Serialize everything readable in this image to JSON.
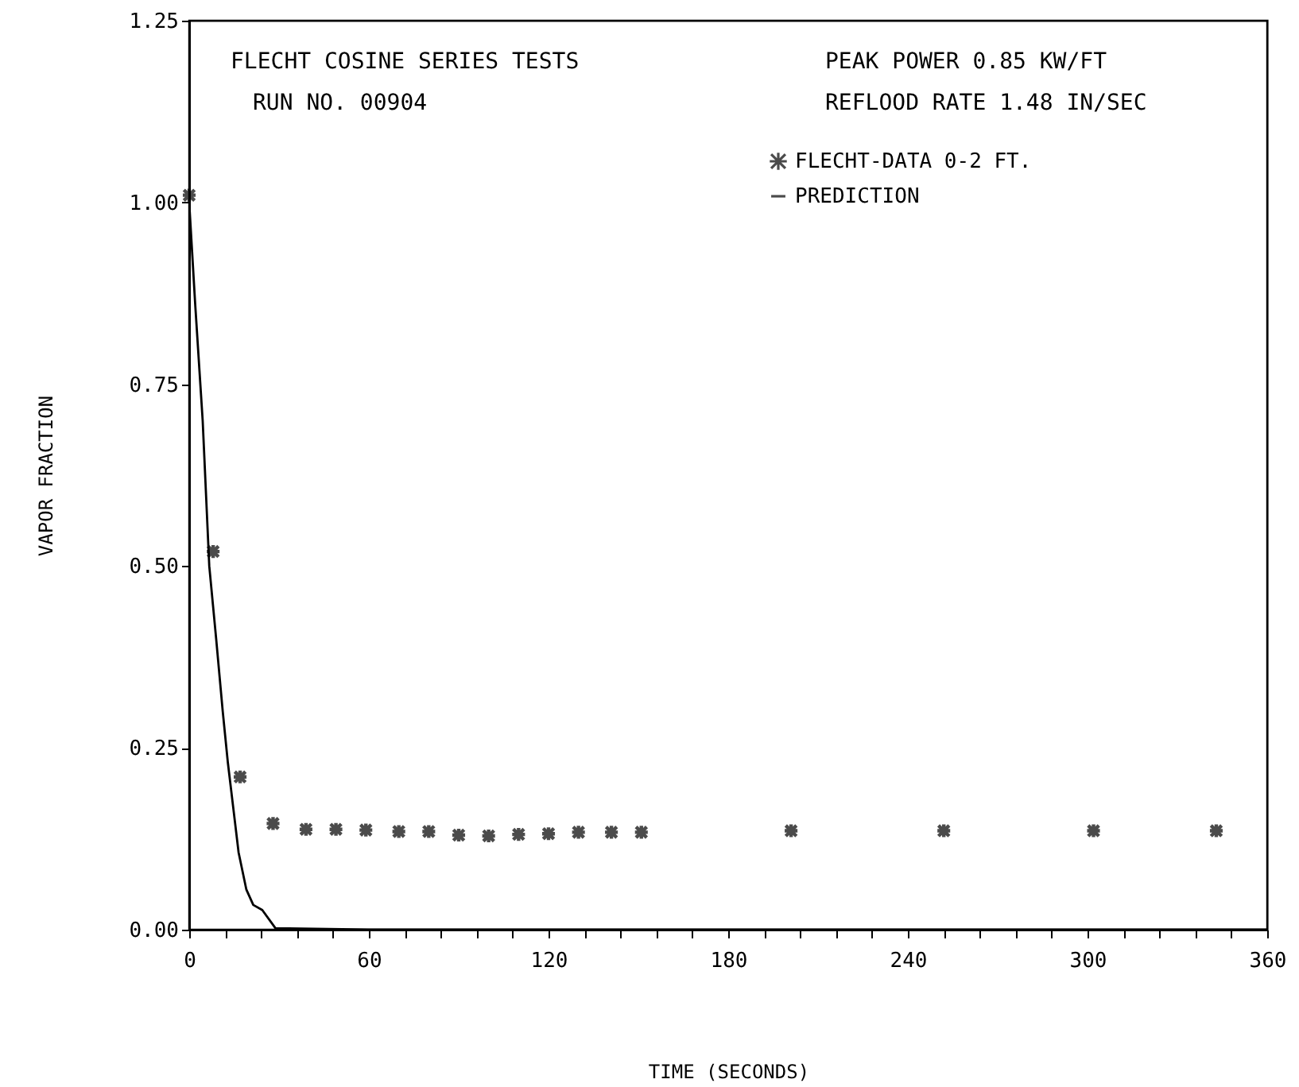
{
  "chart_data": {
    "type": "scatter",
    "title": "FLECHT COSINE SERIES TESTS",
    "subtitle": "RUN NO. 00904",
    "xlabel": "TIME (SECONDS)",
    "ylabel": "VAPOR FRACTION",
    "annotations": [
      "PEAK POWER 0.85 KW/FT",
      "REFLOOD RATE 1.48 IN/SEC"
    ],
    "series": [
      {
        "name": "FLECHT-DATA 0-2 FT.",
        "marker": "cross",
        "color": "#000000",
        "x": [
          0,
          8,
          17,
          28,
          39,
          49,
          59,
          70,
          80,
          90,
          100,
          110,
          120,
          130,
          141,
          151,
          201,
          252,
          302,
          343
        ],
        "values": [
          1.01,
          0.52,
          0.21,
          0.146,
          0.138,
          0.138,
          0.137,
          0.135,
          0.135,
          0.13,
          0.129,
          0.131,
          0.132,
          0.134,
          0.134,
          0.134,
          0.136,
          0.136,
          0.136,
          0.136
        ]
      },
      {
        "name": "PREDICTION",
        "type": "line",
        "marker": "none",
        "color": "#000000",
        "x": [
          0,
          2,
          4.5,
          6.7,
          9,
          11.2,
          12.9,
          16.5,
          19.1,
          21.4,
          24.4,
          28.8,
          60,
          120,
          180,
          240,
          300,
          360
        ],
        "values": [
          1.0,
          0.86,
          0.7,
          0.5,
          0.4,
          0.3,
          0.23,
          0.106,
          0.055,
          0.034,
          0.027,
          0.002,
          0,
          0,
          0,
          0,
          0,
          0
        ]
      }
    ],
    "xlim": [
      0,
      360
    ],
    "xticks": [
      0,
      {
        "value": 12,
        "label": null
      },
      {
        "value": 24,
        "label": null
      },
      {
        "value": 36,
        "label": null
      },
      {
        "value": 48,
        "label": null
      },
      60,
      {
        "value": 72,
        "label": null
      },
      {
        "value": 84,
        "label": null
      },
      {
        "value": 96,
        "label": null
      },
      {
        "value": 108,
        "label": null
      },
      120,
      {
        "value": 132,
        "label": null
      },
      {
        "value": 144,
        "label": null
      },
      {
        "value": 156,
        "label": null
      },
      {
        "value": 168,
        "label": null
      },
      180,
      {
        "value": 192,
        "label": null
      },
      {
        "value": 204,
        "label": null
      },
      {
        "value": 216,
        "label": null
      },
      {
        "value": 228,
        "label": null
      },
      240,
      {
        "value": 252,
        "label": null
      },
      {
        "value": 264,
        "label": null
      },
      {
        "value": 276,
        "label": null
      },
      {
        "value": 288,
        "label": null
      },
      300,
      {
        "value": 312,
        "label": null
      },
      {
        "value": 324,
        "label": null
      },
      {
        "value": 336,
        "label": null
      },
      {
        "value": 348,
        "label": null
      },
      360
    ],
    "ylim": [
      0,
      1.25
    ],
    "yticks": [
      {
        "value": 0,
        "label": "0.00"
      },
      {
        "value": 0.25,
        "label": "0.25"
      },
      {
        "value": 0.5,
        "label": "0.50"
      },
      {
        "value": 0.75,
        "label": "0.75"
      },
      {
        "value": 1,
        "label": "1.00"
      },
      {
        "value": 1.25,
        "label": "1.25"
      }
    ],
    "grid": false,
    "legend": "top right"
  }
}
